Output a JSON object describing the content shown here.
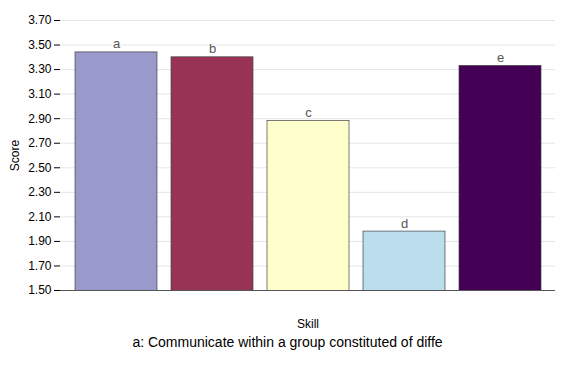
{
  "chart_data": {
    "type": "bar",
    "xlabel": "Skill",
    "ylabel": "Score",
    "caption": "a: Communicate within a group constituted of diffe",
    "categories": [
      "a",
      "b",
      "c",
      "d",
      "e"
    ],
    "values": [
      3.44,
      3.4,
      2.88,
      1.98,
      3.33
    ],
    "colors": [
      "#9999CC",
      "#993355",
      "#FFFFCC",
      "#BBDDEE",
      "#440055"
    ],
    "ylim": [
      1.5,
      3.7
    ],
    "yticks": [
      {
        "value": 1.5,
        "label": "1.50"
      },
      {
        "value": 1.7,
        "label": "1.70"
      },
      {
        "value": 1.9,
        "label": "1.90"
      },
      {
        "value": 2.1,
        "label": "2.10"
      },
      {
        "value": 2.3,
        "label": "2.30"
      },
      {
        "value": 2.5,
        "label": "2.50"
      },
      {
        "value": 2.7,
        "label": "2.70"
      },
      {
        "value": 2.9,
        "label": "2.90"
      },
      {
        "value": 3.1,
        "label": "3.10"
      },
      {
        "value": 3.3,
        "label": "3.30"
      },
      {
        "value": 3.5,
        "label": "3.50"
      },
      {
        "value": 3.7,
        "label": "3.70"
      }
    ],
    "grid": true,
    "tick_labels": "y"
  }
}
